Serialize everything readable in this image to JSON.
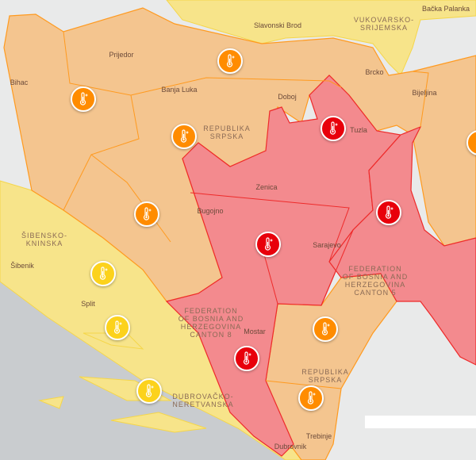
{
  "colors": {
    "sea": "#c9cccf",
    "land": "#e9eaea",
    "yellow": "#f7e48a",
    "orange": "#f4c58f",
    "red": "#f38a8e",
    "marker_orange": "#ff8c00",
    "marker_red": "#e8000b",
    "marker_yellow": "#fcd21c"
  },
  "places": [
    {
      "name": "Slavonski Brod"
    },
    {
      "name": "Bačka Palanka"
    },
    {
      "name": "Prijedor"
    },
    {
      "name": "Bihac"
    },
    {
      "name": "Banja Luka"
    },
    {
      "name": "Doboj"
    },
    {
      "name": "Brcko"
    },
    {
      "name": "Bijeljina"
    },
    {
      "name": "Tuzla"
    },
    {
      "name": "Zenica"
    },
    {
      "name": "Bugojno"
    },
    {
      "name": "Sarajevo"
    },
    {
      "name": "Šibenik"
    },
    {
      "name": "Split"
    },
    {
      "name": "Mostar"
    },
    {
      "name": "Trebinje"
    },
    {
      "name": "Dubrovnik"
    }
  ],
  "regions": [
    {
      "line1": "VUKOVARSKO-",
      "line2": "SRIJEMSKA"
    },
    {
      "line1": "REPUBLIKA",
      "line2": "SRPSKA"
    },
    {
      "line1": "ŠIBENSKO-",
      "line2": "KNINSKA"
    },
    {
      "line1": "FEDERATION",
      "line2": "OF BOSNIA AND",
      "line3": "HERZEGOVINA",
      "line4": "CANTON 5"
    },
    {
      "line1": "FEDERATION",
      "line2": "OF BOSNIA AND",
      "line3": "HERZEGOVINA",
      "line4": "CANTON 8"
    },
    {
      "line1": "REPUBLIKA",
      "line2": "SRPSKA"
    },
    {
      "line1": "DUBROVAČKO-",
      "line2": "NERETVANSKA"
    }
  ],
  "markers": [
    {
      "icon": "thermometer-icon",
      "level": "orange"
    },
    {
      "icon": "thermometer-icon",
      "level": "orange"
    },
    {
      "icon": "thermometer-icon",
      "level": "orange"
    },
    {
      "icon": "thermometer-icon",
      "level": "orange"
    },
    {
      "icon": "thermometer-icon",
      "level": "orange"
    },
    {
      "icon": "thermometer-icon",
      "level": "orange"
    },
    {
      "icon": "thermometer-icon",
      "level": "orange"
    },
    {
      "icon": "thermometer-icon",
      "level": "red"
    },
    {
      "icon": "thermometer-icon",
      "level": "red"
    },
    {
      "icon": "thermometer-icon",
      "level": "red"
    },
    {
      "icon": "thermometer-icon",
      "level": "red"
    },
    {
      "icon": "thermometer-icon",
      "level": "yellow"
    },
    {
      "icon": "thermometer-icon",
      "level": "yellow"
    },
    {
      "icon": "thermometer-icon",
      "level": "yellow"
    }
  ]
}
